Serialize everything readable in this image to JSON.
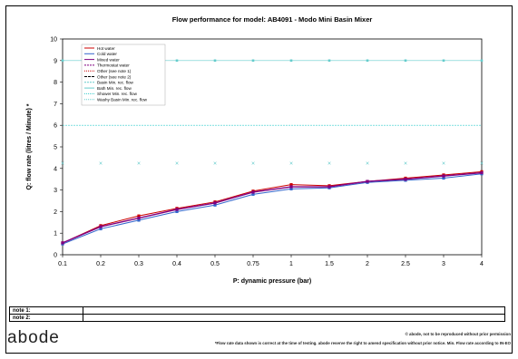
{
  "chart_data": {
    "type": "line",
    "title": "Flow performance for model: AB4091 - Modo Mini Basin Mixer",
    "xlabel": "P: dynamic pressure (bar)",
    "ylabel": "Q: flow rate (litres / Minute) *",
    "categories": [
      "0.1",
      "0.2",
      "0.3",
      "0.4",
      "0.5",
      "0.75",
      "1",
      "1.5",
      "2",
      "2.5",
      "3",
      "4"
    ],
    "ylim": [
      0,
      10
    ],
    "yticks": [
      "0",
      "1",
      "2",
      "3",
      "4",
      "5",
      "6",
      "7",
      "8",
      "9",
      "10"
    ],
    "grid": "none",
    "legend_position": "top-left",
    "legend": [
      "Hot water",
      "Cold water",
      "Mixed water",
      "Thermostat water",
      "Other (see note 1)",
      "Other (see note 2)",
      "Basin Min. rec. flow",
      "Bath Min. rec. flow",
      "Shower Min. rec. flow",
      "Washy Basin Min. rec. flow"
    ],
    "series": [
      {
        "name": "Hot water",
        "color": "#cc0000",
        "values": [
          0.55,
          1.35,
          1.8,
          2.15,
          2.45,
          2.95,
          3.25,
          3.2,
          3.4,
          3.55,
          3.7,
          3.85
        ]
      },
      {
        "name": "Cold water",
        "color": "#3366cc",
        "values": [
          0.5,
          1.2,
          1.6,
          2.0,
          2.3,
          2.8,
          3.05,
          3.1,
          3.35,
          3.45,
          3.55,
          3.75
        ]
      },
      {
        "name": "Mixed water",
        "color": "#800080",
        "values": [
          0.55,
          1.3,
          1.7,
          2.1,
          2.4,
          2.9,
          3.15,
          3.15,
          3.4,
          3.5,
          3.65,
          3.8
        ]
      }
    ],
    "reference_lines": [
      {
        "name": "Bath Min. rec. flow",
        "value": 9,
        "color": "#66cccc"
      },
      {
        "name": "Shower Min. rec. flow",
        "value": 6,
        "color": "#33cccc"
      },
      {
        "name": "Washy Basin Min. rec. flow",
        "value": 4.25,
        "color": "#66cccc"
      }
    ]
  },
  "notes": {
    "note1_label": "note 1:",
    "note2_label": "note 2:"
  },
  "footer": {
    "logo": "abode",
    "copyright": "© abode, not to be reproduced without prior permission",
    "disclaimer": "*Flow rate data shown is correct at the time of testing. abode reserve the right to amend specification without prior notice. Min. Flow rate according to IN-EO"
  }
}
